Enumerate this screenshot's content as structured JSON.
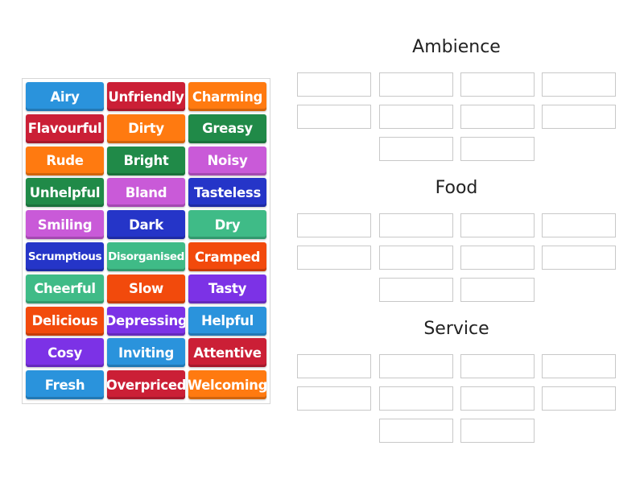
{
  "colors": {
    "blue": "#2a93dc",
    "red": "#cb1f36",
    "orange": "#ff7a10",
    "darkgreen": "#208a48",
    "pink": "#c95ad8",
    "navy": "#2535c8",
    "teal": "#3fbb87",
    "vermilion": "#f24a0c",
    "purple": "#7c32e6"
  },
  "cards": [
    {
      "label": "Airy",
      "color": "blue"
    },
    {
      "label": "Unfriendly",
      "color": "red"
    },
    {
      "label": "Charming",
      "color": "orange"
    },
    {
      "label": "Flavourful",
      "color": "red"
    },
    {
      "label": "Dirty",
      "color": "orange"
    },
    {
      "label": "Greasy",
      "color": "darkgreen"
    },
    {
      "label": "Rude",
      "color": "orange"
    },
    {
      "label": "Bright",
      "color": "darkgreen"
    },
    {
      "label": "Noisy",
      "color": "pink"
    },
    {
      "label": "Unhelpful",
      "color": "darkgreen"
    },
    {
      "label": "Bland",
      "color": "pink"
    },
    {
      "label": "Tasteless",
      "color": "navy"
    },
    {
      "label": "Smiling",
      "color": "pink"
    },
    {
      "label": "Dark",
      "color": "navy"
    },
    {
      "label": "Dry",
      "color": "teal"
    },
    {
      "label": "Scrumptious",
      "color": "navy",
      "small": true
    },
    {
      "label": "Disorganised",
      "color": "teal",
      "small": true
    },
    {
      "label": "Cramped",
      "color": "vermilion"
    },
    {
      "label": "Cheerful",
      "color": "teal"
    },
    {
      "label": "Slow",
      "color": "vermilion"
    },
    {
      "label": "Tasty",
      "color": "purple"
    },
    {
      "label": "Delicious",
      "color": "vermilion"
    },
    {
      "label": "Depressing",
      "color": "purple"
    },
    {
      "label": "Helpful",
      "color": "blue"
    },
    {
      "label": "Cosy",
      "color": "purple"
    },
    {
      "label": "Inviting",
      "color": "blue"
    },
    {
      "label": "Attentive",
      "color": "red"
    },
    {
      "label": "Fresh",
      "color": "blue"
    },
    {
      "label": "Overpriced",
      "color": "red"
    },
    {
      "label": "Welcoming",
      "color": "orange"
    }
  ],
  "groups": [
    {
      "title": "Ambience",
      "slots": 10
    },
    {
      "title": "Food",
      "slots": 10
    },
    {
      "title": "Service",
      "slots": 10
    }
  ]
}
